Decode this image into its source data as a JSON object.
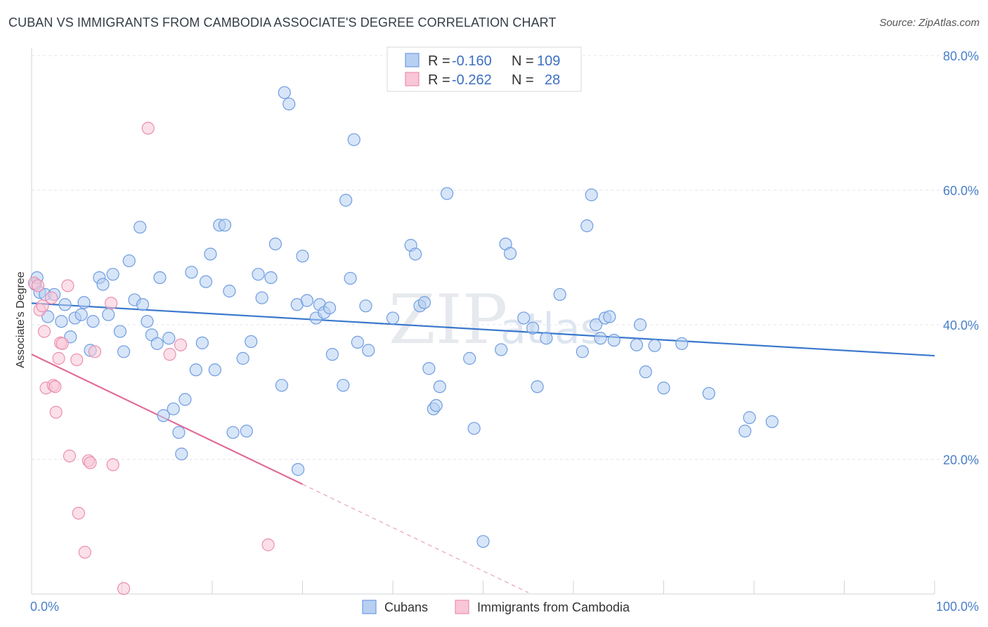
{
  "title": "CUBAN VS IMMIGRANTS FROM CAMBODIA ASSOCIATE'S DEGREE CORRELATION CHART",
  "source": "Source: ZipAtlas.com",
  "watermark": {
    "zip": "ZIP",
    "atlas": "atlas"
  },
  "legend": {
    "rows": [
      {
        "r_label": "R =",
        "r_value": "-0.160",
        "n_label": "N =",
        "n_value": "109",
        "color": "#6f9de0",
        "fill": "#b7cff3"
      },
      {
        "r_label": "R =",
        "r_value": "-0.262",
        "n_label": "N =",
        "n_value": "28",
        "color": "#ec8fb0",
        "fill": "#f8c6d6"
      }
    ]
  },
  "chart_data": {
    "type": "scatter",
    "title": "CUBAN VS IMMIGRANTS FROM CAMBODIA ASSOCIATE'S DEGREE CORRELATION CHART",
    "xlabel": "",
    "ylabel": "Associate's Degree",
    "xlim": [
      0,
      100
    ],
    "ylim": [
      0,
      80
    ],
    "x_tick_labels": [
      "0.0%",
      "100.0%"
    ],
    "y_ticks": [
      20,
      40,
      60,
      80
    ],
    "y_tick_labels": [
      "20.0%",
      "40.0%",
      "60.0%",
      "80.0%"
    ],
    "grid": true,
    "legend_position": "bottom-center",
    "series": [
      {
        "name": "Cubans",
        "color": "#6f9de0",
        "fill": "#b7cff3",
        "trend": {
          "x0": 0,
          "y0": 43.2,
          "x1": 100,
          "y1": 35.4
        },
        "points": [
          [
            0.4,
            46.0
          ],
          [
            0.6,
            47.0
          ],
          [
            0.9,
            44.8
          ],
          [
            1.5,
            44.5
          ],
          [
            1.8,
            41.2
          ],
          [
            2.5,
            44.5
          ],
          [
            3.3,
            40.5
          ],
          [
            3.7,
            43.0
          ],
          [
            4.3,
            38.2
          ],
          [
            4.8,
            41.0
          ],
          [
            5.5,
            41.5
          ],
          [
            5.8,
            43.3
          ],
          [
            6.5,
            36.2
          ],
          [
            6.8,
            40.5
          ],
          [
            7.5,
            47.0
          ],
          [
            7.9,
            46.0
          ],
          [
            8.5,
            41.5
          ],
          [
            9.0,
            47.5
          ],
          [
            9.8,
            39.0
          ],
          [
            10.2,
            36.0
          ],
          [
            10.8,
            49.5
          ],
          [
            11.4,
            43.7
          ],
          [
            12.0,
            54.5
          ],
          [
            12.3,
            43.0
          ],
          [
            12.8,
            40.5
          ],
          [
            13.3,
            38.5
          ],
          [
            13.9,
            37.2
          ],
          [
            14.2,
            47.0
          ],
          [
            14.6,
            26.5
          ],
          [
            15.2,
            38.0
          ],
          [
            15.7,
            27.5
          ],
          [
            16.3,
            24.0
          ],
          [
            16.6,
            20.8
          ],
          [
            17.0,
            28.9
          ],
          [
            17.7,
            47.8
          ],
          [
            18.2,
            33.3
          ],
          [
            18.9,
            37.3
          ],
          [
            19.3,
            46.4
          ],
          [
            19.8,
            50.5
          ],
          [
            20.3,
            33.3
          ],
          [
            20.8,
            54.8
          ],
          [
            21.4,
            54.8
          ],
          [
            21.9,
            45.0
          ],
          [
            22.3,
            24.0
          ],
          [
            23.4,
            35.0
          ],
          [
            23.8,
            24.2
          ],
          [
            24.3,
            37.5
          ],
          [
            25.1,
            47.5
          ],
          [
            25.5,
            44.0
          ],
          [
            26.5,
            47.0
          ],
          [
            27.0,
            52.0
          ],
          [
            27.7,
            31.0
          ],
          [
            28.0,
            74.5
          ],
          [
            28.5,
            72.8
          ],
          [
            29.4,
            43.0
          ],
          [
            30.0,
            50.2
          ],
          [
            30.5,
            43.6
          ],
          [
            31.5,
            41.0
          ],
          [
            31.9,
            43.0
          ],
          [
            32.4,
            41.8
          ],
          [
            33.0,
            42.5
          ],
          [
            33.3,
            35.6
          ],
          [
            34.5,
            31.0
          ],
          [
            34.8,
            58.5
          ],
          [
            35.3,
            46.9
          ],
          [
            35.7,
            67.5
          ],
          [
            36.1,
            37.4
          ],
          [
            37.0,
            42.8
          ],
          [
            37.3,
            36.2
          ],
          [
            40.0,
            41.0
          ],
          [
            42.0,
            51.8
          ],
          [
            42.5,
            50.5
          ],
          [
            43.0,
            42.8
          ],
          [
            43.5,
            43.3
          ],
          [
            44.0,
            33.5
          ],
          [
            44.5,
            27.5
          ],
          [
            44.8,
            28.0
          ],
          [
            45.2,
            30.8
          ],
          [
            46.0,
            59.5
          ],
          [
            48.5,
            35.0
          ],
          [
            49.0,
            24.6
          ],
          [
            50.0,
            7.8
          ],
          [
            52.0,
            36.3
          ],
          [
            52.5,
            52.0
          ],
          [
            53.0,
            50.6
          ],
          [
            54.5,
            41.0
          ],
          [
            55.5,
            39.5
          ],
          [
            56.0,
            30.8
          ],
          [
            57.0,
            38.0
          ],
          [
            58.5,
            44.5
          ],
          [
            61.0,
            36.0
          ],
          [
            61.5,
            54.7
          ],
          [
            62.0,
            59.3
          ],
          [
            62.5,
            40.0
          ],
          [
            63.0,
            38.0
          ],
          [
            63.5,
            41.0
          ],
          [
            64.0,
            41.2
          ],
          [
            64.5,
            37.7
          ],
          [
            67.0,
            37.0
          ],
          [
            67.4,
            40.0
          ],
          [
            68.0,
            33.0
          ],
          [
            69.0,
            36.9
          ],
          [
            70.0,
            30.6
          ],
          [
            72.0,
            37.2
          ],
          [
            75.0,
            29.8
          ],
          [
            79.0,
            24.2
          ],
          [
            79.5,
            26.2
          ],
          [
            82.0,
            25.6
          ],
          [
            29.5,
            18.5
          ]
        ]
      },
      {
        "name": "Immigrants from Cambodia",
        "color": "#ec8fb0",
        "fill": "#f8c6d6",
        "trend": {
          "x0": 0,
          "y0": 35.6,
          "x1": 30,
          "y1": 16.3,
          "dash_x1": 55,
          "dash_y1": 0.2
        },
        "points": [
          [
            0.3,
            46.2
          ],
          [
            0.7,
            45.8
          ],
          [
            0.9,
            42.2
          ],
          [
            1.2,
            42.8
          ],
          [
            1.4,
            39.0
          ],
          [
            1.6,
            30.6
          ],
          [
            2.2,
            44.0
          ],
          [
            2.4,
            31.0
          ],
          [
            2.6,
            30.8
          ],
          [
            2.7,
            27.0
          ],
          [
            3.0,
            35.0
          ],
          [
            3.2,
            37.3
          ],
          [
            3.4,
            37.2
          ],
          [
            4.0,
            45.8
          ],
          [
            4.2,
            20.5
          ],
          [
            5.0,
            34.8
          ],
          [
            5.2,
            12.0
          ],
          [
            5.9,
            6.2
          ],
          [
            6.3,
            19.8
          ],
          [
            6.5,
            19.5
          ],
          [
            7.0,
            36.0
          ],
          [
            8.8,
            43.2
          ],
          [
            9.0,
            19.2
          ],
          [
            10.2,
            0.8
          ],
          [
            12.9,
            69.2
          ],
          [
            15.3,
            35.6
          ],
          [
            16.5,
            37.0
          ],
          [
            26.2,
            7.3
          ]
        ]
      }
    ]
  }
}
